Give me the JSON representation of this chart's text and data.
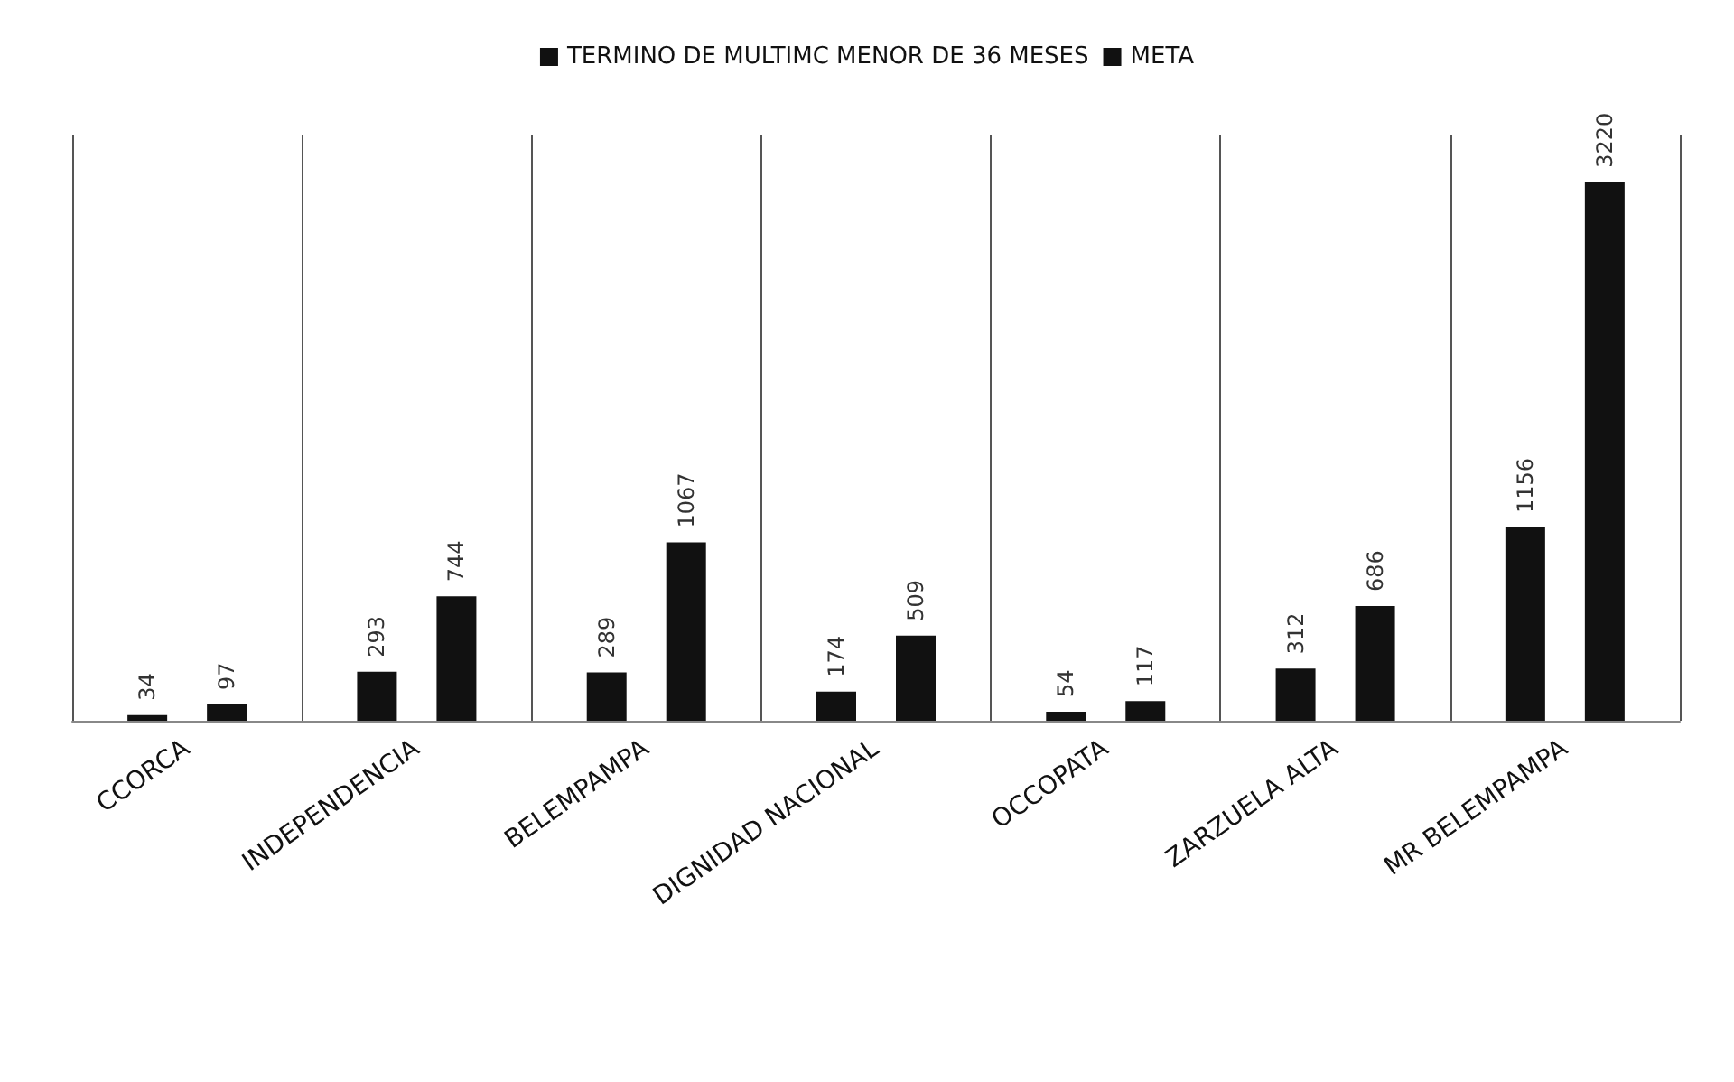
{
  "chart_data": {
    "type": "bar",
    "categories": [
      "CCORCA",
      "INDEPENDENCIA",
      "BELEMPAMPA",
      "DIGNIDAD NACIONAL",
      "OCCOPATA",
      "ZARZUELA ALTA",
      "MR BELEMPAMPA"
    ],
    "series": [
      {
        "name": "TERMINO DE MULTIMC MENOR DE 36 MESES",
        "color": "#111111",
        "values": [
          34,
          293,
          289,
          174,
          54,
          312,
          1156
        ]
      },
      {
        "name": "META",
        "color": "#111111",
        "values": [
          97,
          744,
          1067,
          509,
          117,
          686,
          3220
        ]
      }
    ],
    "data_labels": true,
    "legend": "top",
    "grid": "x"
  }
}
